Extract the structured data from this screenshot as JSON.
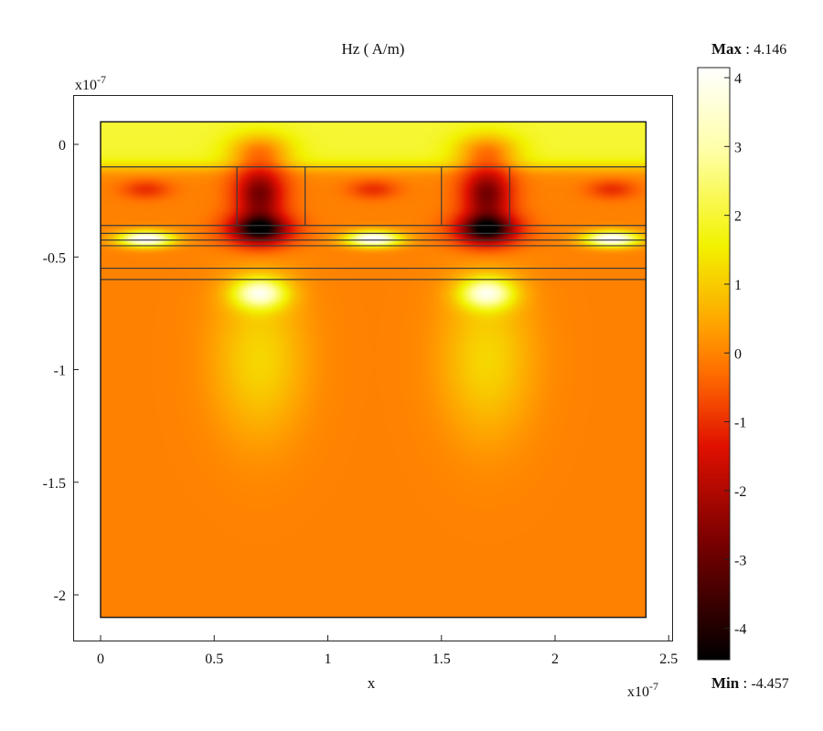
{
  "chart_data": {
    "type": "heatmap",
    "title": "Hz ( A/m)",
    "xlabel": "x",
    "ylabel": "",
    "x_exponent_label": "x10",
    "x_exponent_power": "-7",
    "y_exponent_label": "x10",
    "y_exponent_power": "-7",
    "xlim": [
      -0.1,
      2.5
    ],
    "ylim": [
      -2.2,
      0.18
    ],
    "domain": {
      "x": [
        0,
        2.4
      ],
      "y": [
        -2.1,
        0.1
      ]
    },
    "x_ticks": [
      0,
      0.5,
      1,
      1.5,
      2,
      2.5
    ],
    "x_tick_labels": [
      "0",
      "0.5",
      "1",
      "1.5",
      "2",
      "2.5"
    ],
    "y_ticks": [
      0,
      -0.5,
      -1,
      -1.5,
      -2
    ],
    "y_tick_labels": [
      "0",
      "-0.5",
      "-1",
      "-1.5",
      "-2"
    ],
    "colorbar": {
      "max_label": "Max",
      "max_value": "4.146",
      "min_label": "Min",
      "min_value": "-4.457",
      "range": [
        -4.457,
        4.146
      ],
      "ticks": [
        4,
        3,
        2,
        1,
        0,
        -1,
        -2,
        -3,
        -4
      ],
      "tick_labels": [
        "4",
        "3",
        "2",
        "1",
        "0",
        "-1",
        "-2",
        "-3",
        "-4"
      ],
      "colormap": "hot"
    },
    "structure": {
      "layer_lines_y": [
        -0.1,
        -0.36,
        -0.395,
        -0.425,
        -0.45,
        -0.55,
        -0.6
      ],
      "ridges": [
        {
          "x": [
            0.6,
            0.9
          ],
          "y": [
            -0.1,
            -0.36
          ]
        },
        {
          "x": [
            1.5,
            1.8
          ],
          "y": [
            -0.1,
            -0.36
          ]
        }
      ]
    },
    "field_features": [
      {
        "kind": "background",
        "region": "substrate y<-0.6",
        "value": 0.3
      },
      {
        "kind": "background",
        "region": "cladding y>-0.1",
        "value": 2.3
      },
      {
        "kind": "minimum",
        "x": 0.7,
        "y": -0.38,
        "value": -4.4
      },
      {
        "kind": "minimum",
        "x": 1.7,
        "y": -0.38,
        "value": -4.4
      },
      {
        "kind": "maximum",
        "x": 0.2,
        "y": -0.42,
        "value": 4.1
      },
      {
        "kind": "maximum",
        "x": 1.2,
        "y": -0.42,
        "value": 4.1
      },
      {
        "kind": "maximum",
        "x": 2.25,
        "y": -0.42,
        "value": 4.1
      },
      {
        "kind": "glow",
        "x": 0.7,
        "y": -0.66,
        "value": 3.3
      },
      {
        "kind": "glow",
        "x": 1.7,
        "y": -0.66,
        "value": 3.3
      }
    ]
  }
}
